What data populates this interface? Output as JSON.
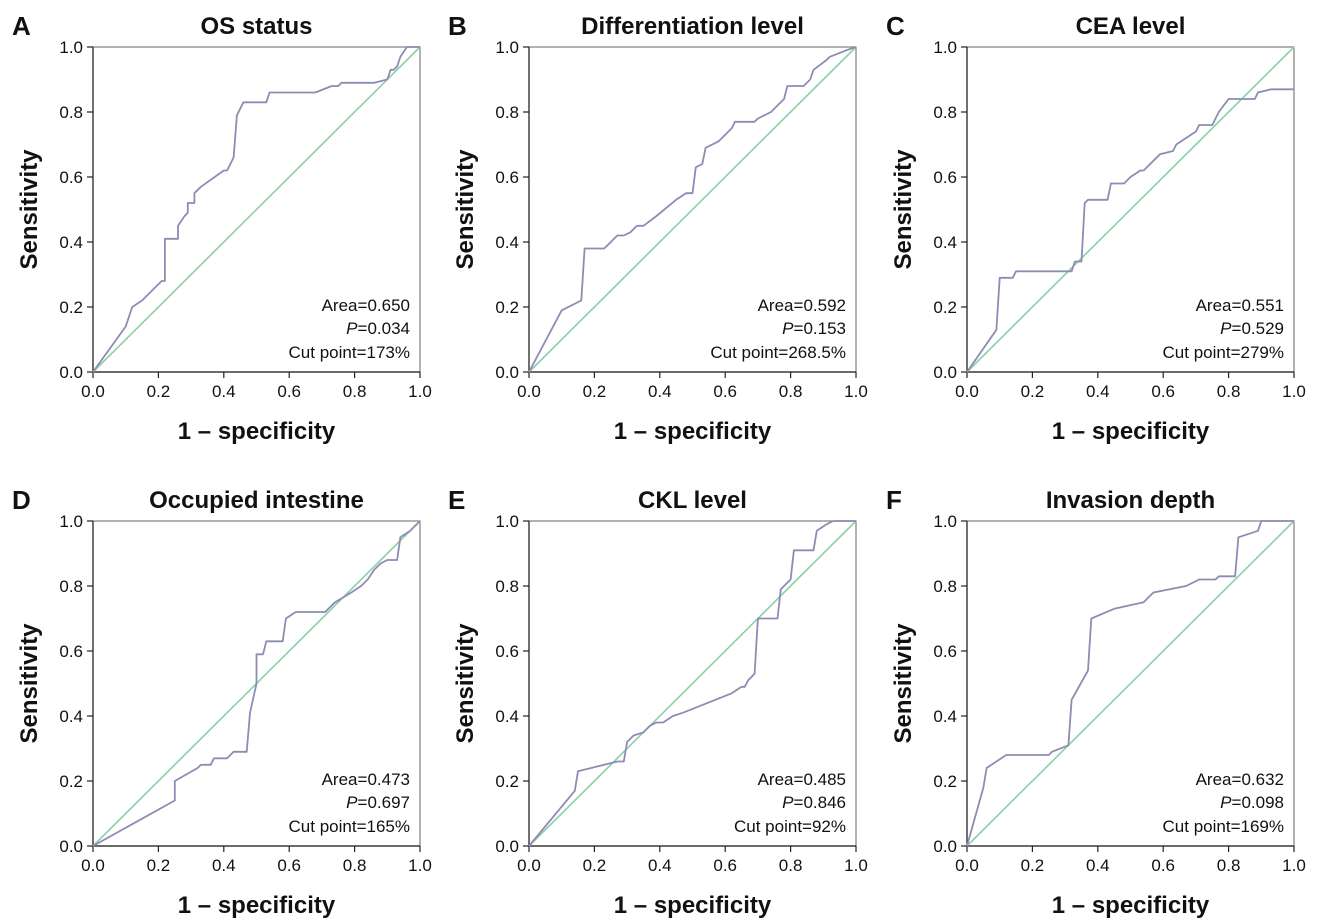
{
  "figure": {
    "colors": {
      "roc": "#8c8cb4",
      "reference": "#8ccfa8"
    }
  },
  "chart_data": [
    {
      "type": "line",
      "panel": "A",
      "title": "OS status",
      "xlabel": "1 – specificity",
      "ylabel": "Sensitivity",
      "xlim": [
        0,
        1
      ],
      "ylim": [
        0,
        1
      ],
      "xticks": [
        "0.0",
        "0.2",
        "0.4",
        "0.6",
        "0.8",
        "1.0"
      ],
      "yticks": [
        "0.0",
        "0.2",
        "0.4",
        "0.6",
        "0.8",
        "1.0"
      ],
      "annotation": {
        "area": "=0.650",
        "area_label": "Area",
        "p_label": "P",
        "p": "=0.034",
        "cut_label": "Cut point",
        "cut": "=173%"
      },
      "roc": {
        "x": [
          0,
          0.1,
          0.12,
          0.15,
          0.17,
          0.19,
          0.21,
          0.22,
          0.22,
          0.26,
          0.26,
          0.28,
          0.29,
          0.29,
          0.31,
          0.31,
          0.33,
          0.4,
          0.41,
          0.43,
          0.44,
          0.46,
          0.52,
          0.53,
          0.54,
          0.68,
          0.73,
          0.75,
          0.76,
          0.86,
          0.9,
          0.91,
          0.92,
          0.93,
          0.94,
          0.96,
          1.0
        ],
        "y": [
          0,
          0.14,
          0.2,
          0.22,
          0.24,
          0.26,
          0.28,
          0.28,
          0.41,
          0.41,
          0.45,
          0.48,
          0.49,
          0.52,
          0.52,
          0.55,
          0.57,
          0.62,
          0.62,
          0.66,
          0.79,
          0.83,
          0.83,
          0.83,
          0.86,
          0.86,
          0.88,
          0.88,
          0.89,
          0.89,
          0.9,
          0.93,
          0.93,
          0.94,
          0.97,
          1.0,
          1.0
        ]
      }
    },
    {
      "type": "line",
      "panel": "B",
      "title": "Differentiation level",
      "xlabel": "1 – specificity",
      "ylabel": "Sensitivity",
      "xlim": [
        0,
        1
      ],
      "ylim": [
        0,
        1
      ],
      "xticks": [
        "0.0",
        "0.2",
        "0.4",
        "0.6",
        "0.8",
        "1.0"
      ],
      "yticks": [
        "0.0",
        "0.2",
        "0.4",
        "0.6",
        "0.8",
        "1.0"
      ],
      "annotation": {
        "area": "=0.592",
        "area_label": "Area",
        "p_label": "P",
        "p": "=0.153",
        "cut_label": "Cut point",
        "cut": "=268.5%"
      },
      "roc": {
        "x": [
          0,
          0.1,
          0.16,
          0.17,
          0.23,
          0.25,
          0.27,
          0.29,
          0.31,
          0.33,
          0.35,
          0.39,
          0.45,
          0.48,
          0.5,
          0.51,
          0.53,
          0.54,
          0.58,
          0.6,
          0.62,
          0.63,
          0.69,
          0.7,
          0.74,
          0.76,
          0.78,
          0.79,
          0.83,
          0.84,
          0.86,
          0.87,
          0.91,
          0.92,
          0.97,
          1.0
        ],
        "y": [
          0,
          0.19,
          0.22,
          0.38,
          0.38,
          0.4,
          0.42,
          0.42,
          0.43,
          0.45,
          0.45,
          0.48,
          0.53,
          0.55,
          0.55,
          0.63,
          0.64,
          0.69,
          0.71,
          0.73,
          0.75,
          0.77,
          0.77,
          0.78,
          0.8,
          0.82,
          0.84,
          0.88,
          0.88,
          0.88,
          0.9,
          0.93,
          0.96,
          0.97,
          0.99,
          1.0
        ]
      }
    },
    {
      "type": "line",
      "panel": "C",
      "title": "CEA level",
      "xlabel": "1 – specificity",
      "ylabel": "Sensitivity",
      "xlim": [
        0,
        1
      ],
      "ylim": [
        0,
        1
      ],
      "xticks": [
        "0.0",
        "0.2",
        "0.4",
        "0.6",
        "0.8",
        "1.0"
      ],
      "yticks": [
        "0.0",
        "0.2",
        "0.4",
        "0.6",
        "0.8",
        "1.0"
      ],
      "annotation": {
        "area": "=0.551",
        "area_label": "Area",
        "p_label": "P",
        "p": "=0.529",
        "cut_label": "Cut point",
        "cut": "=279%"
      },
      "roc": {
        "x": [
          0,
          0.09,
          0.1,
          0.14,
          0.15,
          0.32,
          0.33,
          0.35,
          0.36,
          0.37,
          0.43,
          0.44,
          0.48,
          0.5,
          0.53,
          0.54,
          0.59,
          0.63,
          0.64,
          0.67,
          0.7,
          0.71,
          0.75,
          0.77,
          0.8,
          0.88,
          0.89,
          0.93,
          1.0
        ],
        "y": [
          0,
          0.13,
          0.29,
          0.29,
          0.31,
          0.31,
          0.34,
          0.34,
          0.52,
          0.53,
          0.53,
          0.58,
          0.58,
          0.6,
          0.62,
          0.62,
          0.67,
          0.68,
          0.7,
          0.72,
          0.74,
          0.76,
          0.76,
          0.8,
          0.84,
          0.84,
          0.86,
          0.87,
          0.87
        ]
      }
    },
    {
      "type": "line",
      "panel": "D",
      "title": "Occupied intestine",
      "xlabel": "1 – specificity",
      "ylabel": "Sensitivity",
      "xlim": [
        0,
        1
      ],
      "ylim": [
        0,
        1
      ],
      "xticks": [
        "0.0",
        "0.2",
        "0.4",
        "0.6",
        "0.8",
        "1.0"
      ],
      "yticks": [
        "0.0",
        "0.2",
        "0.4",
        "0.6",
        "0.8",
        "1.0"
      ],
      "annotation": {
        "area": "=0.473",
        "area_label": "Area",
        "p_label": "P",
        "p": "=0.697",
        "cut_label": "Cut point",
        "cut": "=165%"
      },
      "roc": {
        "x": [
          0,
          0.25,
          0.25,
          0.32,
          0.33,
          0.36,
          0.37,
          0.41,
          0.43,
          0.47,
          0.48,
          0.5,
          0.5,
          0.52,
          0.53,
          0.58,
          0.59,
          0.62,
          0.65,
          0.71,
          0.74,
          0.79,
          0.82,
          0.84,
          0.86,
          0.87,
          0.88,
          0.9,
          0.93,
          0.94,
          0.97,
          1.0
        ],
        "y": [
          0,
          0.14,
          0.2,
          0.24,
          0.25,
          0.25,
          0.27,
          0.27,
          0.29,
          0.29,
          0.41,
          0.5,
          0.59,
          0.59,
          0.63,
          0.63,
          0.7,
          0.72,
          0.72,
          0.72,
          0.75,
          0.78,
          0.8,
          0.82,
          0.85,
          0.86,
          0.87,
          0.88,
          0.88,
          0.95,
          0.97,
          1.0
        ]
      }
    },
    {
      "type": "line",
      "panel": "E",
      "title": "CKL level",
      "xlabel": "1 – specificity",
      "ylabel": "Sensitivity",
      "xlim": [
        0,
        1
      ],
      "ylim": [
        0,
        1
      ],
      "xticks": [
        "0.0",
        "0.2",
        "0.4",
        "0.6",
        "0.8",
        "1.0"
      ],
      "yticks": [
        "0.0",
        "0.2",
        "0.4",
        "0.6",
        "0.8",
        "1.0"
      ],
      "annotation": {
        "area": "=0.485",
        "area_label": "Area",
        "p_label": "P",
        "p": "=0.846",
        "cut_label": "Cut point",
        "cut": "=92%"
      },
      "roc": {
        "x": [
          0,
          0.14,
          0.15,
          0.27,
          0.29,
          0.3,
          0.32,
          0.35,
          0.37,
          0.39,
          0.41,
          0.44,
          0.47,
          0.62,
          0.65,
          0.66,
          0.67,
          0.68,
          0.69,
          0.7,
          0.76,
          0.77,
          0.8,
          0.81,
          0.87,
          0.88,
          0.91,
          0.93,
          1.0
        ],
        "y": [
          0,
          0.17,
          0.23,
          0.26,
          0.26,
          0.32,
          0.34,
          0.35,
          0.37,
          0.38,
          0.38,
          0.4,
          0.41,
          0.47,
          0.49,
          0.49,
          0.51,
          0.52,
          0.53,
          0.7,
          0.7,
          0.79,
          0.82,
          0.91,
          0.91,
          0.97,
          0.99,
          1.0,
          1.0
        ]
      }
    },
    {
      "type": "line",
      "panel": "F",
      "title": "Invasion depth",
      "xlabel": "1 – specificity",
      "ylabel": "Sensitivity",
      "xlim": [
        0,
        1
      ],
      "ylim": [
        0,
        1
      ],
      "xticks": [
        "0.0",
        "0.2",
        "0.4",
        "0.6",
        "0.8",
        "1.0"
      ],
      "yticks": [
        "0.0",
        "0.2",
        "0.4",
        "0.6",
        "0.8",
        "1.0"
      ],
      "annotation": {
        "area": "=0.632",
        "area_label": "Area",
        "p_label": "P",
        "p": "=0.098",
        "cut_label": "Cut point",
        "cut": "=169%"
      },
      "roc": {
        "x": [
          0,
          0.05,
          0.06,
          0.12,
          0.25,
          0.26,
          0.31,
          0.32,
          0.37,
          0.38,
          0.45,
          0.54,
          0.56,
          0.57,
          0.62,
          0.67,
          0.71,
          0.76,
          0.77,
          0.82,
          0.83,
          0.89,
          0.9,
          0.91,
          1.0
        ],
        "y": [
          0,
          0.18,
          0.24,
          0.28,
          0.28,
          0.29,
          0.31,
          0.45,
          0.54,
          0.7,
          0.73,
          0.75,
          0.77,
          0.78,
          0.79,
          0.8,
          0.82,
          0.82,
          0.83,
          0.83,
          0.95,
          0.97,
          1.0,
          1.0,
          1.0
        ]
      }
    }
  ]
}
